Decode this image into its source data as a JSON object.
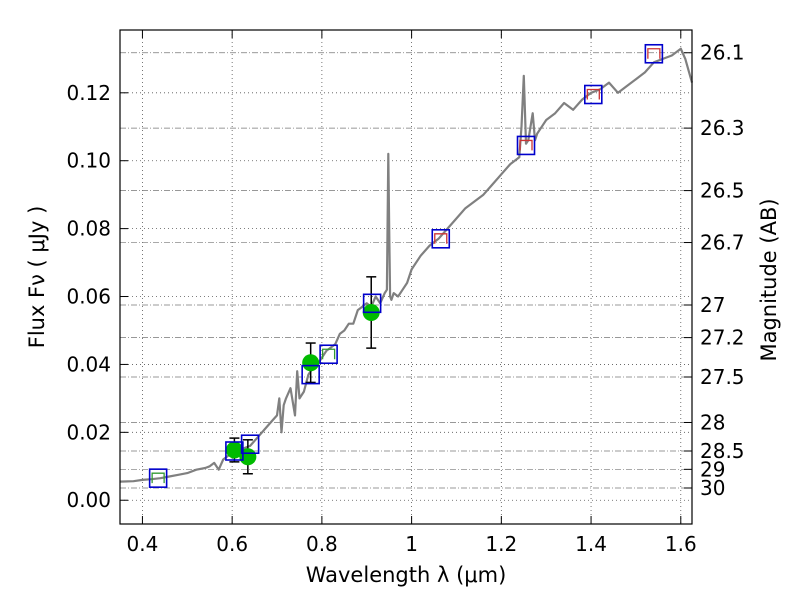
{
  "chart_data": {
    "type": "line",
    "xlabel": "Wavelength  λ (μm)",
    "ylabel": "Flux  Fν  ( μJy )",
    "ylabel_right": "Magnitude (AB)",
    "xlim": [
      0.35,
      1.625
    ],
    "ylim": [
      -0.007,
      0.1385
    ],
    "grid": true,
    "x_ticks": [
      0.4,
      0.6,
      0.8,
      1.0,
      1.2,
      1.4,
      1.6
    ],
    "x_tick_labels": [
      "0.4",
      "0.6",
      "0.8",
      "1",
      "1.2",
      "1.4",
      "1.6"
    ],
    "y_ticks": [
      0.0,
      0.02,
      0.04,
      0.06,
      0.08,
      0.1,
      0.12
    ],
    "y_tick_labels": [
      "0.00",
      "0.02",
      "0.04",
      "0.06",
      "0.08",
      "0.10",
      "0.12"
    ],
    "magnitude_ticks": [
      {
        "label": "26.1",
        "flux": 0.1318
      },
      {
        "label": "26.3",
        "flux": 0.1096
      },
      {
        "label": "26.5",
        "flux": 0.0912
      },
      {
        "label": "26.7",
        "flux": 0.0759
      },
      {
        "label": "27",
        "flux": 0.0575
      },
      {
        "label": "27.2",
        "flux": 0.0479
      },
      {
        "label": "27.5",
        "flux": 0.0363
      },
      {
        "label": "28",
        "flux": 0.0229
      },
      {
        "label": "28.5",
        "flux": 0.0145
      },
      {
        "label": "29",
        "flux": 0.0091
      },
      {
        "label": "30",
        "flux": 0.0036
      }
    ],
    "model_spectrum": {
      "name": "model spectrum",
      "color": "#808080",
      "x": [
        0.35,
        0.38,
        0.4,
        0.42,
        0.44,
        0.46,
        0.48,
        0.5,
        0.52,
        0.54,
        0.55,
        0.56,
        0.57,
        0.58,
        0.59,
        0.6,
        0.62,
        0.64,
        0.66,
        0.68,
        0.69,
        0.7,
        0.705,
        0.71,
        0.715,
        0.72,
        0.73,
        0.74,
        0.745,
        0.75,
        0.76,
        0.77,
        0.78,
        0.79,
        0.8,
        0.81,
        0.82,
        0.83,
        0.84,
        0.85,
        0.86,
        0.87,
        0.88,
        0.89,
        0.9,
        0.91,
        0.92,
        0.93,
        0.94,
        0.945,
        0.948,
        0.95,
        0.952,
        0.955,
        0.96,
        0.97,
        0.98,
        0.99,
        1.0,
        1.02,
        1.04,
        1.06,
        1.08,
        1.1,
        1.12,
        1.14,
        1.16,
        1.18,
        1.2,
        1.22,
        1.24,
        1.245,
        1.25,
        1.255,
        1.26,
        1.27,
        1.275,
        1.28,
        1.29,
        1.3,
        1.32,
        1.34,
        1.36,
        1.38,
        1.4,
        1.42,
        1.44,
        1.46,
        1.48,
        1.5,
        1.52,
        1.54,
        1.56,
        1.58,
        1.6,
        1.61,
        1.625
      ],
      "y": [
        0.0055,
        0.0056,
        0.006,
        0.0062,
        0.0065,
        0.007,
        0.0075,
        0.008,
        0.009,
        0.0095,
        0.01,
        0.011,
        0.009,
        0.012,
        0.013,
        0.014,
        0.015,
        0.016,
        0.019,
        0.022,
        0.0235,
        0.025,
        0.03,
        0.02,
        0.028,
        0.03,
        0.033,
        0.025,
        0.038,
        0.03,
        0.032,
        0.037,
        0.039,
        0.04,
        0.042,
        0.044,
        0.045,
        0.046,
        0.049,
        0.05,
        0.052,
        0.052,
        0.056,
        0.057,
        0.058,
        0.057,
        0.06,
        0.058,
        0.061,
        0.062,
        0.102,
        0.08,
        0.06,
        0.059,
        0.061,
        0.06,
        0.062,
        0.064,
        0.068,
        0.072,
        0.075,
        0.077,
        0.08,
        0.083,
        0.086,
        0.088,
        0.09,
        0.093,
        0.096,
        0.099,
        0.101,
        0.11,
        0.125,
        0.105,
        0.106,
        0.114,
        0.106,
        0.108,
        0.11,
        0.112,
        0.114,
        0.117,
        0.115,
        0.118,
        0.12,
        0.121,
        0.123,
        0.12,
        0.122,
        0.124,
        0.126,
        0.129,
        0.13,
        0.131,
        0.133,
        0.13,
        0.123
      ]
    },
    "model_photometry": {
      "name": "model photometry",
      "edge_color": "#0000cc",
      "x": [
        0.435,
        0.605,
        0.64,
        0.775,
        0.815,
        0.912,
        1.065,
        1.255,
        1.405,
        1.54
      ],
      "y": [
        0.0065,
        0.0145,
        0.0165,
        0.037,
        0.043,
        0.058,
        0.077,
        0.1045,
        0.1195,
        0.1315
      ]
    },
    "filter_curves": {
      "name": "band markers",
      "colors": [
        "#339933",
        "#cc3333"
      ],
      "x": [
        0.435,
        0.815,
        1.065,
        1.255,
        1.405,
        1.54
      ],
      "y": [
        0.0065,
        0.043,
        0.077,
        0.1045,
        0.1195,
        0.1315
      ],
      "color_index": [
        0,
        0,
        1,
        1,
        1,
        1
      ]
    },
    "observed": {
      "name": "observed photometry",
      "color": "#00bb00",
      "x": [
        0.605,
        0.635,
        0.775,
        0.91
      ],
      "y": [
        0.0148,
        0.0128,
        0.0405,
        0.0553
      ],
      "yerr": [
        0.0035,
        0.005,
        0.0058,
        0.0105
      ]
    }
  }
}
